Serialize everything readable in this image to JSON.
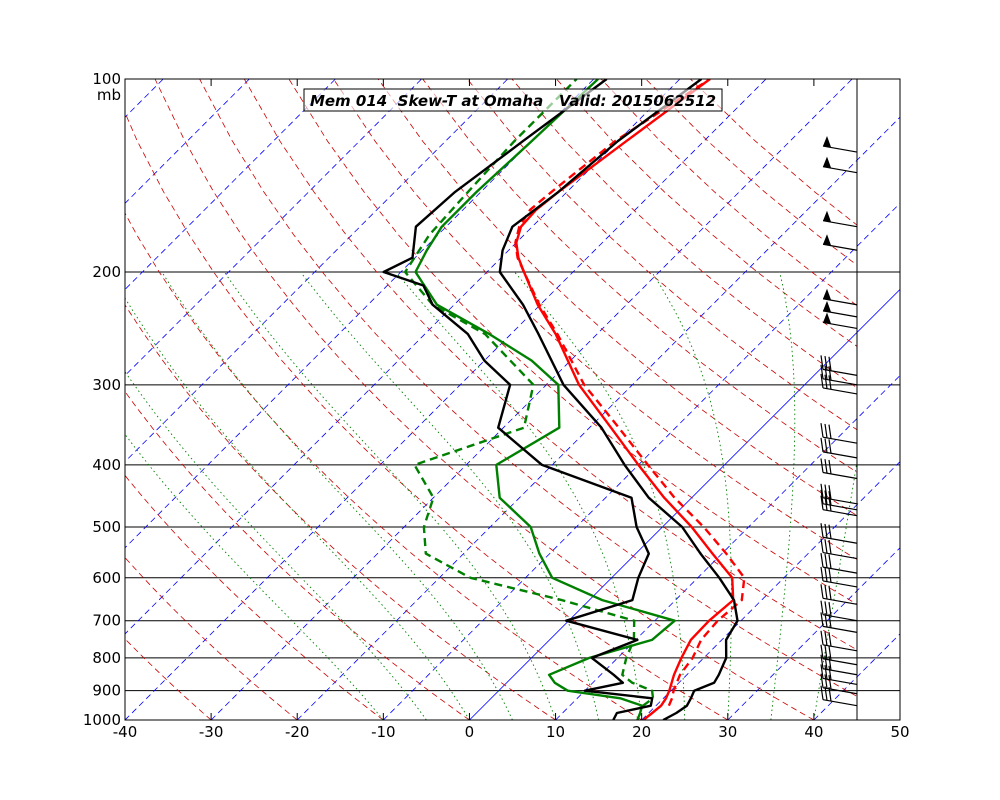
{
  "chart_data": {
    "type": "skew-t",
    "title": "Mem 014  Skew-T at Omaha   Valid: 2015062512",
    "ylabel": "mb",
    "x_ticks": [
      -40,
      -30,
      -20,
      -10,
      0,
      10,
      20,
      30,
      40,
      50
    ],
    "x_range": [
      -40,
      50
    ],
    "pressure_range": [
      1000,
      100
    ],
    "pressure_ticks": [
      100,
      200,
      300,
      400,
      500,
      600,
      700,
      800,
      900,
      1000
    ],
    "y_scale": "log",
    "grid": true,
    "colors": {
      "temperature_member": "#ff0000",
      "dewpoint_member": "#008000",
      "observed_temperature": "#000000",
      "isotherm": "#0000ff",
      "dry_adiabat": "#cc0000",
      "moist_adiabat": "#008000",
      "wind_barb": "#000000"
    },
    "series": [
      {
        "role": "temperature solid",
        "color": "#ff0000",
        "style": "solid",
        "pressure": [
          1000,
          975,
          950,
          925,
          900,
          850,
          800,
          750,
          700,
          650,
          600,
          550,
          500,
          450,
          400,
          350,
          300,
          250,
          225,
          200,
          190,
          180,
          170,
          160,
          150,
          125,
          100
        ],
        "temp": [
          20.2,
          20.4,
          20.6,
          20.3,
          19.8,
          18.5,
          17.4,
          16.4,
          16.3,
          16.7,
          14.0,
          8.9,
          3.4,
          -3.2,
          -10.0,
          -17.5,
          -26.2,
          -34.8,
          -40.3,
          -45.7,
          -48.0,
          -50.0,
          -51.3,
          -51.5,
          -51.0,
          -49.0,
          -46.5
        ]
      },
      {
        "role": "temperature dashed",
        "color": "#ff0000",
        "style": "dashed",
        "pressure": [
          950,
          925,
          900,
          850,
          800,
          750,
          700,
          650,
          600,
          550,
          500,
          450,
          400,
          350,
          300,
          250,
          225,
          200,
          190,
          180,
          170,
          160,
          150,
          125,
          100
        ],
        "temp": [
          21.5,
          21.0,
          20.3,
          19.2,
          18.7,
          17.6,
          17.3,
          17.7,
          15.4,
          10.5,
          4.8,
          -2.0,
          -8.9,
          -16.6,
          -25.6,
          -34.6,
          -40.1,
          -45.7,
          -48.1,
          -50.1,
          -51.5,
          -52.2,
          -51.8,
          -50.3,
          -46.5
        ]
      },
      {
        "role": "dewpoint solid",
        "color": "#008000",
        "style": "solid",
        "pressure": [
          1000,
          975,
          950,
          925,
          900,
          875,
          850,
          800,
          750,
          700,
          650,
          600,
          550,
          500,
          450,
          400,
          350,
          300,
          275,
          250,
          225,
          200,
          185,
          170,
          150,
          125,
          100
        ],
        "dew": [
          19.5,
          19.0,
          18.4,
          15.0,
          8.0,
          5.6,
          4.0,
          6.7,
          11.9,
          12.3,
          1.5,
          -6.9,
          -11.2,
          -15.3,
          -22.3,
          -26.5,
          -23.5,
          -28.6,
          -34.5,
          -42.5,
          -52.0,
          -58.3,
          -59.5,
          -60.5,
          -60.5,
          -60.0,
          -59.5
        ]
      },
      {
        "role": "dewpoint dashed",
        "color": "#008000",
        "style": "dashed",
        "pressure": [
          950,
          925,
          900,
          875,
          850,
          800,
          750,
          700,
          650,
          600,
          550,
          500,
          450,
          400,
          350,
          300,
          250,
          225,
          200,
          175,
          150,
          125,
          100
        ],
        "dew": [
          18.5,
          18.8,
          17.8,
          14.6,
          12.5,
          11.0,
          9.8,
          7.6,
          -3.2,
          -16.4,
          -24.4,
          -27.7,
          -30.0,
          -36.0,
          -27.6,
          -31.5,
          -43.0,
          -52.5,
          -59.5,
          -61.0,
          -61.5,
          -62.0,
          -62.0
        ]
      },
      {
        "role": "observed",
        "color": "#000000",
        "style": "solid",
        "pressure": [
          1000,
          975,
          950,
          925,
          900,
          875,
          850,
          800,
          750,
          700,
          650,
          600,
          550,
          500,
          450,
          400,
          350,
          300,
          250,
          225,
          200,
          185,
          170,
          150,
          125,
          100
        ],
        "temp": [
          22.5,
          23.2,
          23.6,
          23.2,
          22.7,
          24.1,
          23.7,
          22.6,
          20.5,
          19.6,
          16.8,
          12.5,
          7.5,
          2.3,
          -5.0,
          -11.6,
          -18.6,
          -28.0,
          -36.8,
          -42.0,
          -48.5,
          -50.7,
          -52.3,
          -51.0,
          -50.0,
          -47.5
        ]
      },
      {
        "role": "observed",
        "color": "#000000",
        "style": "solid",
        "pressure": [
          1000,
          975,
          950,
          925,
          900,
          875,
          850,
          800,
          750,
          700,
          650,
          600,
          550,
          500,
          450,
          400,
          350,
          300,
          275,
          250,
          225,
          210,
          200,
          190,
          170,
          150,
          125,
          100
        ],
        "temp": [
          16.7,
          16.3,
          19.4,
          18.7,
          10.0,
          13.5,
          11.5,
          7.0,
          10.2,
          -0.3,
          5.0,
          3.1,
          1.5,
          -3.0,
          -7.0,
          -21.2,
          -30.6,
          -34.2,
          -40.0,
          -45.0,
          -52.5,
          -55.8,
          -62.0,
          -60.3,
          -63.5,
          -63.0,
          -61.0,
          -58.5
        ]
      }
    ],
    "wind_barbs": {
      "pressure": [
        130,
        140,
        170,
        185,
        225,
        235,
        245,
        290,
        300,
        310,
        370,
        390,
        420,
        460,
        470,
        480,
        530,
        560,
        590,
        620,
        660,
        700,
        730,
        780,
        820,
        850,
        880,
        910,
        950
      ]
    }
  }
}
